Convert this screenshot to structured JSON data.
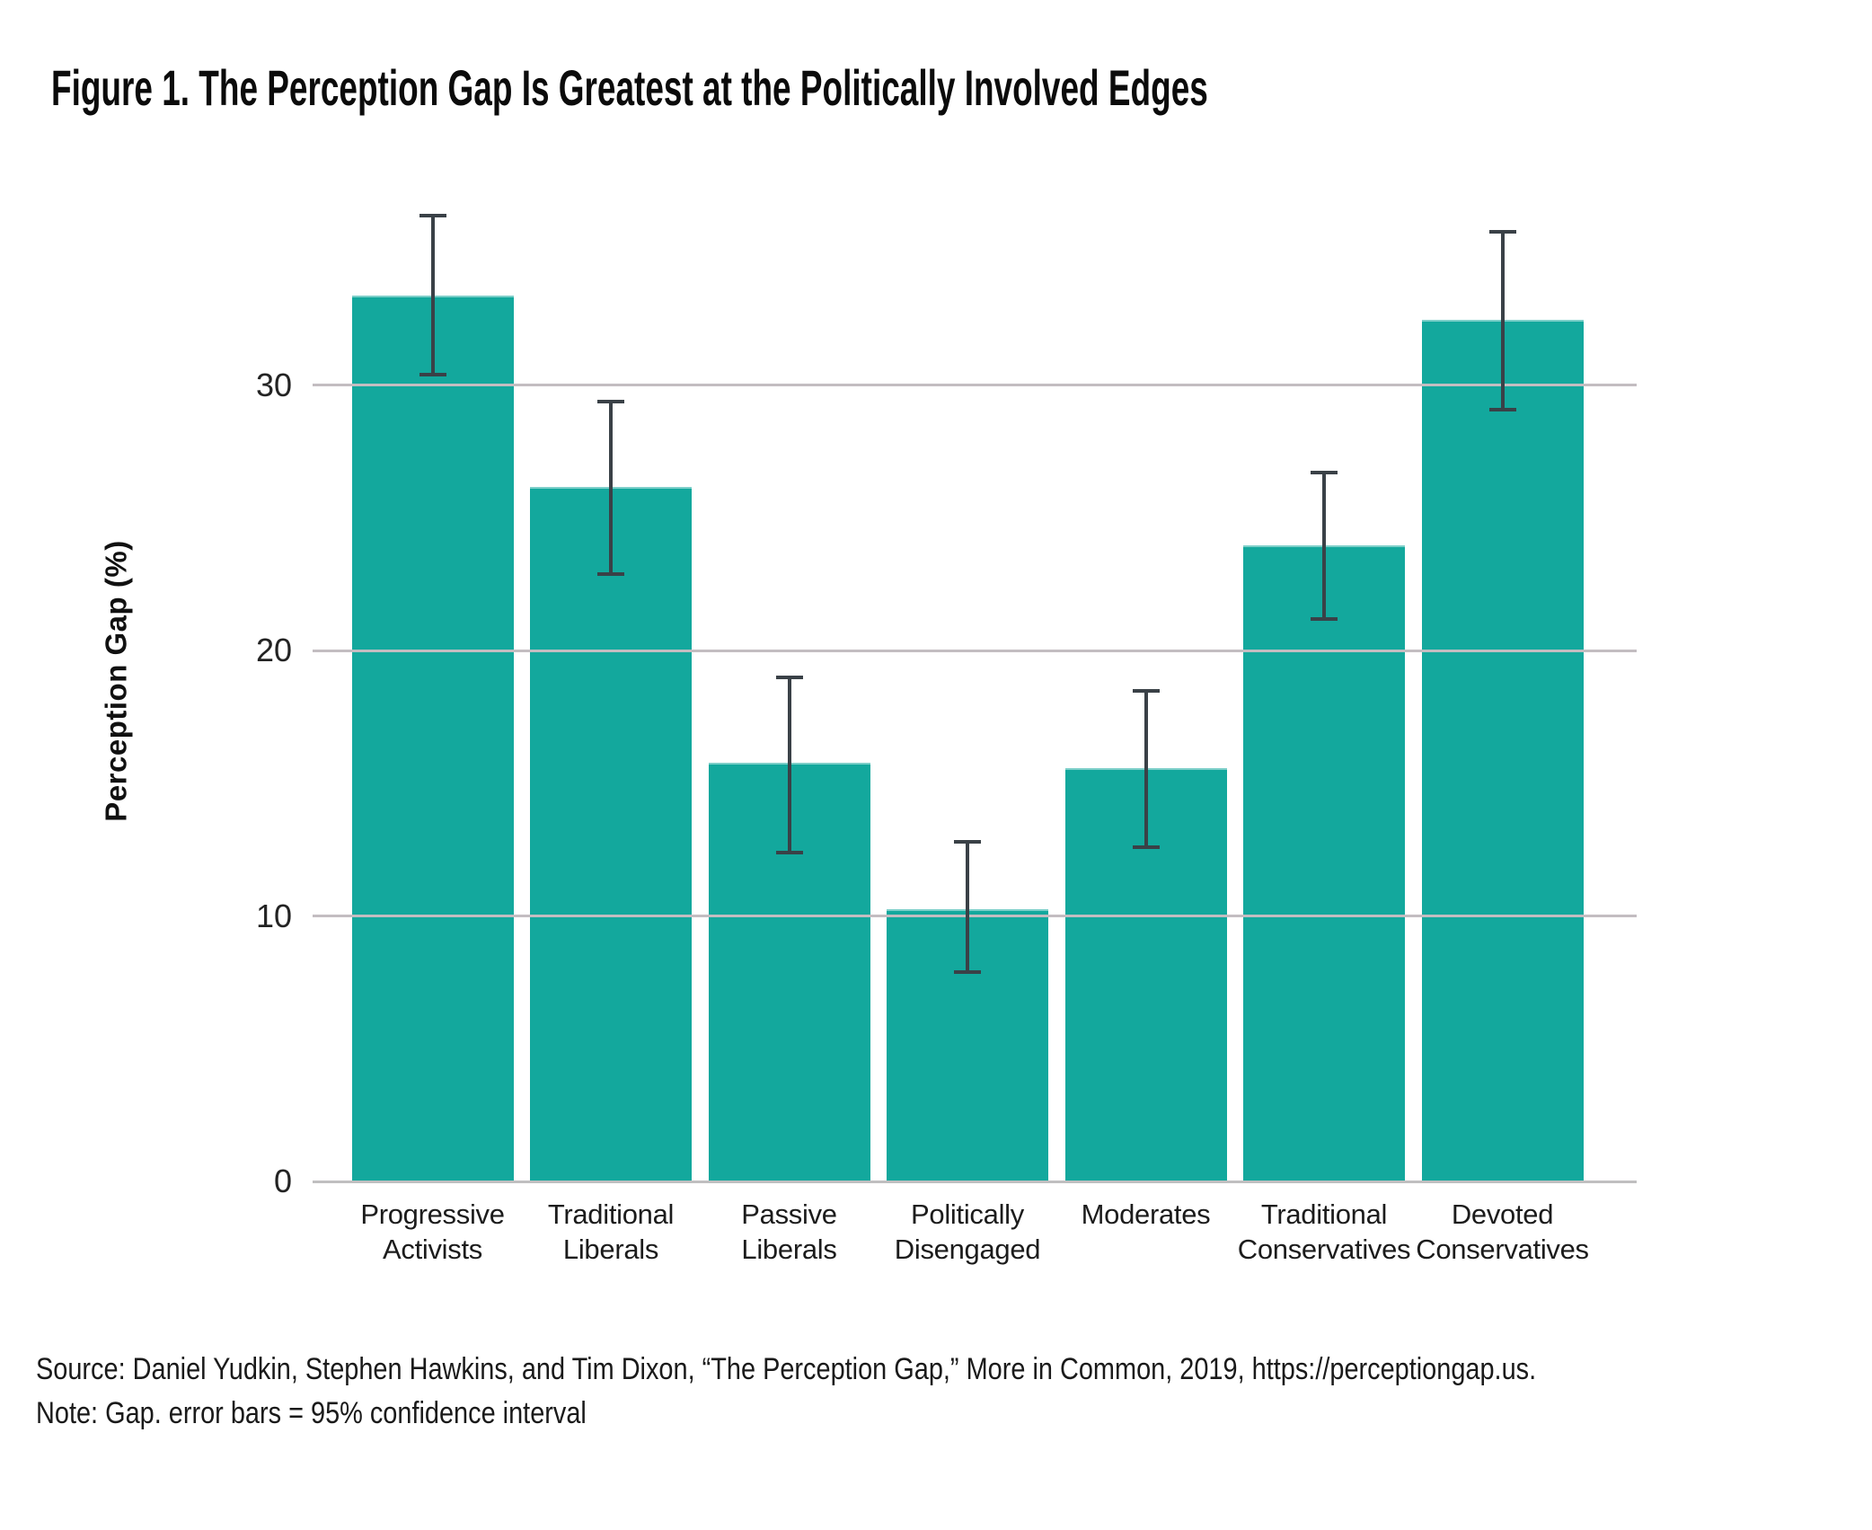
{
  "page": {
    "title": "Figure 1. The Perception Gap Is Greatest at the Politically Involved Edges",
    "source": "Source: Daniel Yudkin, Stephen Hawkins, and Tim Dixon, “The Perception Gap,” More in Common, 2019, https://perceptiongap.us.",
    "note": "Note: Gap. error bars = 95% confidence interval"
  },
  "colors": {
    "bar": "#13a89d",
    "error_bar": "#3a4147",
    "gridline": "#c3bdc1",
    "baseline": "#c0bfc0",
    "title_text": "#0b0b0b",
    "body_text": "#1a1a1a"
  },
  "chart_data": {
    "type": "bar",
    "title": "Figure 1. The Perception Gap Is Greatest at the Politically Involved Edges",
    "xlabel": "",
    "ylabel": "Perception Gap (%)",
    "categories": [
      "Progressive Activists",
      "Traditional Liberals",
      "Passive Liberals",
      "Politically Disengaged",
      "Moderates",
      "Traditional Conservatives",
      "Devoted Conservatives"
    ],
    "category_label_lines": [
      [
        "Progressive",
        "Activists"
      ],
      [
        "Traditional",
        "Liberals"
      ],
      [
        "Passive",
        "Liberals"
      ],
      [
        "Politically",
        "Disengaged"
      ],
      [
        "Moderates"
      ],
      [
        "Traditional",
        "Conservatives"
      ],
      [
        "Devoted",
        "Conservatives"
      ]
    ],
    "values": [
      33.3,
      26.1,
      15.7,
      10.2,
      15.5,
      23.9,
      32.4
    ],
    "error_low": [
      30.4,
      22.9,
      12.4,
      7.9,
      12.6,
      21.2,
      29.1
    ],
    "error_high": [
      36.4,
      29.4,
      19.0,
      12.8,
      18.5,
      26.7,
      35.8
    ],
    "yticks": [
      0,
      10,
      20,
      30
    ],
    "ylim": [
      0,
      37.75
    ],
    "grid": "horizontal gridlines at 10, 20, 30 drawn over bars",
    "legend": "none",
    "error_bars": "95% confidence interval"
  }
}
